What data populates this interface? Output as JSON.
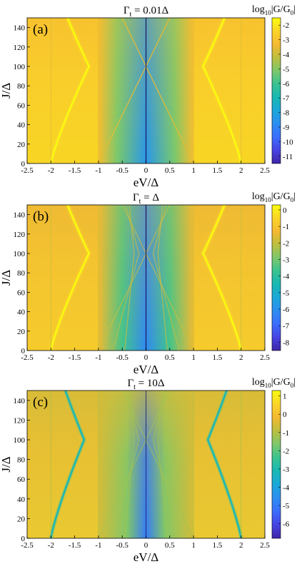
{
  "figure": {
    "panels": [
      {
        "label": "(a)",
        "title": "Γt = 0.01Δ",
        "colorbar_label": "log10|G/G0|",
        "colorbar_ticks": [
          "-2",
          "-3",
          "-4",
          "-5",
          "-6",
          "-7",
          "-8",
          "-9",
          "-10",
          "-11"
        ]
      },
      {
        "label": "(b)",
        "title": "Γt = Δ",
        "colorbar_label": "log10|G/G0|",
        "colorbar_ticks": [
          "0",
          "-1",
          "-2",
          "-3",
          "-4",
          "-5",
          "-6",
          "-7",
          "-8"
        ]
      },
      {
        "label": "(c)",
        "title": "Γt = 10Δ",
        "colorbar_label": "log10|G/G0|",
        "colorbar_ticks": [
          "1",
          "0",
          "-1",
          "-2",
          "-3",
          "-4",
          "-5",
          "-6"
        ]
      }
    ]
  },
  "chart_data": [
    {
      "type": "heatmap",
      "panel": "(a)",
      "title": "Γt = 0.01Δ",
      "xlabel": "eV/Δ",
      "ylabel": "J/Δ",
      "xlim": [
        -2.5,
        2.5
      ],
      "ylim": [
        0,
        150
      ],
      "xticks": [
        -2.5,
        -2,
        -1.5,
        -1,
        -0.5,
        0,
        0.5,
        1,
        1.5,
        2,
        2.5
      ],
      "yticks": [
        0,
        20,
        40,
        60,
        80,
        100,
        120,
        140
      ],
      "colorbar": {
        "label": "log10|G/G0|",
        "range": [
          -11.5,
          -1.5
        ],
        "ticks": [
          -2,
          -3,
          -4,
          -5,
          -6,
          -7,
          -8,
          -9,
          -10,
          -11
        ]
      },
      "colormap": [
        "#3e26a8",
        "#4743e2",
        "#3b6dfd",
        "#2c8ef0",
        "#1ba7d9",
        "#18b8b4",
        "#3ac390",
        "#7cc86b",
        "#bcbf3f",
        "#f5b931",
        "#fbd52a",
        "#f9fb0e"
      ],
      "features": {
        "pair_crossing_J": 100,
        "yellow_resonance_x_at_J0": [
          -2.0,
          2.0
        ],
        "yellow_resonance_x_at_crossing": [
          -1.2,
          1.2
        ],
        "inner_band_edges_x": [
          -1,
          1
        ],
        "outer_edges_x": [
          -2,
          2
        ],
        "central_gap_x": 0,
        "background_level": -3.2,
        "gap_level": -8.5
      }
    },
    {
      "type": "heatmap",
      "panel": "(b)",
      "title": "Γt = Δ",
      "xlabel": "eV/Δ",
      "ylabel": "J/Δ",
      "xlim": [
        -2.5,
        2.5
      ],
      "ylim": [
        0,
        150
      ],
      "xticks": [
        -2.5,
        -2,
        -1.5,
        -1,
        -0.5,
        0,
        0.5,
        1,
        1.5,
        2,
        2.5
      ],
      "yticks": [
        0,
        20,
        40,
        60,
        80,
        100,
        120,
        140
      ],
      "colorbar": {
        "label": "log10|G/G0|",
        "range": [
          -8.5,
          0.3
        ],
        "ticks": [
          0,
          -1,
          -2,
          -3,
          -4,
          -5,
          -6,
          -7,
          -8
        ]
      },
      "colormap": [
        "#3e26a8",
        "#4743e2",
        "#3b6dfd",
        "#2c8ef0",
        "#1ba7d9",
        "#18b8b4",
        "#3ac390",
        "#7cc86b",
        "#bcbf3f",
        "#f5b931",
        "#fbd52a",
        "#f9fb0e"
      ],
      "features": {
        "pair_crossing_J": 100,
        "yellow_resonance_x_at_J0": [
          -2.0,
          2.0
        ],
        "yellow_resonance_x_at_crossing": [
          -1.2,
          1.2
        ],
        "inner_band_edges_x": [
          -1,
          1
        ],
        "outer_edges_x": [
          -2,
          2
        ],
        "central_gap_x": 0,
        "background_level": -1.4,
        "gap_level": -6.2
      }
    },
    {
      "type": "heatmap",
      "panel": "(c)",
      "title": "Γt = 10Δ",
      "xlabel": "eV/Δ",
      "ylabel": "J/Δ",
      "xlim": [
        -2.5,
        2.5
      ],
      "ylim": [
        0,
        150
      ],
      "xticks": [
        -2.5,
        -2,
        -1.5,
        -1,
        -0.5,
        0,
        0.5,
        1,
        1.5,
        2,
        2.5
      ],
      "yticks": [
        0,
        20,
        40,
        60,
        80,
        100,
        120,
        140
      ],
      "colorbar": {
        "label": "log10|G/G0|",
        "range": [
          -6.8,
          1.3
        ],
        "ticks": [
          1,
          0,
          -1,
          -2,
          -3,
          -4,
          -5,
          -6
        ]
      },
      "colormap": [
        "#3e26a8",
        "#4743e2",
        "#3b6dfd",
        "#2c8ef0",
        "#1ba7d9",
        "#18b8b4",
        "#3ac390",
        "#7cc86b",
        "#bcbf3f",
        "#f5b931",
        "#fbd52a",
        "#f9fb0e"
      ],
      "features": {
        "pair_crossing_J": 100,
        "resonance_x_at_J0": [
          -2.0,
          2.0
        ],
        "resonance_x_at_crossing": [
          -1.3,
          1.3
        ],
        "inner_band_edges_x": [
          -1,
          1
        ],
        "outer_edges_x": [
          -2,
          2
        ],
        "central_gap_x": 0,
        "background_level": -0.6,
        "gap_level": -5.0
      }
    }
  ]
}
